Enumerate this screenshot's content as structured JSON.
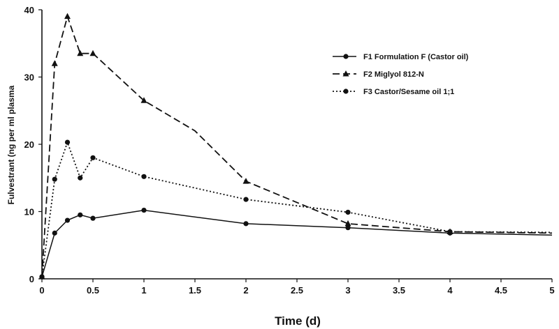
{
  "chart_data": {
    "type": "line",
    "title": "",
    "xlabel": "Time (d)",
    "ylabel": "Fulvestrant (ng per ml plasma",
    "xlim": [
      0,
      5
    ],
    "ylim": [
      0,
      40
    ],
    "x_ticks": [
      "0",
      "0.5",
      "1",
      "1.5",
      "2",
      "2.5",
      "3",
      "3.5",
      "4",
      "4.5",
      "5"
    ],
    "y_ticks": [
      "0",
      "10",
      "20",
      "30",
      "40"
    ],
    "grid": false,
    "legend_position": "top-right",
    "series": [
      {
        "name": "F1 Formulation F (Castor oil)",
        "line_style": "solid",
        "marker": "circle",
        "x": [
          0,
          0.125,
          0.25,
          0.375,
          0.5,
          1,
          2,
          3,
          4,
          5
        ],
        "y": [
          0.3,
          6.8,
          8.7,
          9.5,
          9.0,
          10.2,
          8.2,
          7.6,
          6.8,
          6.5
        ],
        "markers_at": [
          0,
          0.125,
          0.25,
          0.375,
          0.5,
          1,
          2,
          3,
          4
        ]
      },
      {
        "name": "F2 Miglyol 812-N",
        "line_style": "dashed",
        "marker": "triangle",
        "x": [
          0,
          0.125,
          0.25,
          0.375,
          0.5,
          1,
          1.5,
          2,
          3,
          4,
          5
        ],
        "y": [
          0.3,
          32.0,
          39.0,
          33.5,
          33.5,
          26.5,
          22.0,
          14.5,
          8.2,
          7.0,
          6.8
        ],
        "markers_at": [
          0,
          0.125,
          0.25,
          0.375,
          0.5,
          1,
          2,
          3,
          4
        ]
      },
      {
        "name": "F3 Castor/Sesame oil 1;1",
        "line_style": "dotted",
        "marker": "circle",
        "x": [
          0,
          0.125,
          0.25,
          0.375,
          0.5,
          1,
          2,
          3,
          4,
          5
        ],
        "y": [
          0.3,
          14.8,
          20.3,
          15.0,
          18.0,
          15.2,
          11.8,
          9.9,
          7.0,
          6.9
        ],
        "markers_at": [
          0,
          0.125,
          0.25,
          0.375,
          0.5,
          1,
          2,
          3,
          4
        ]
      }
    ]
  }
}
